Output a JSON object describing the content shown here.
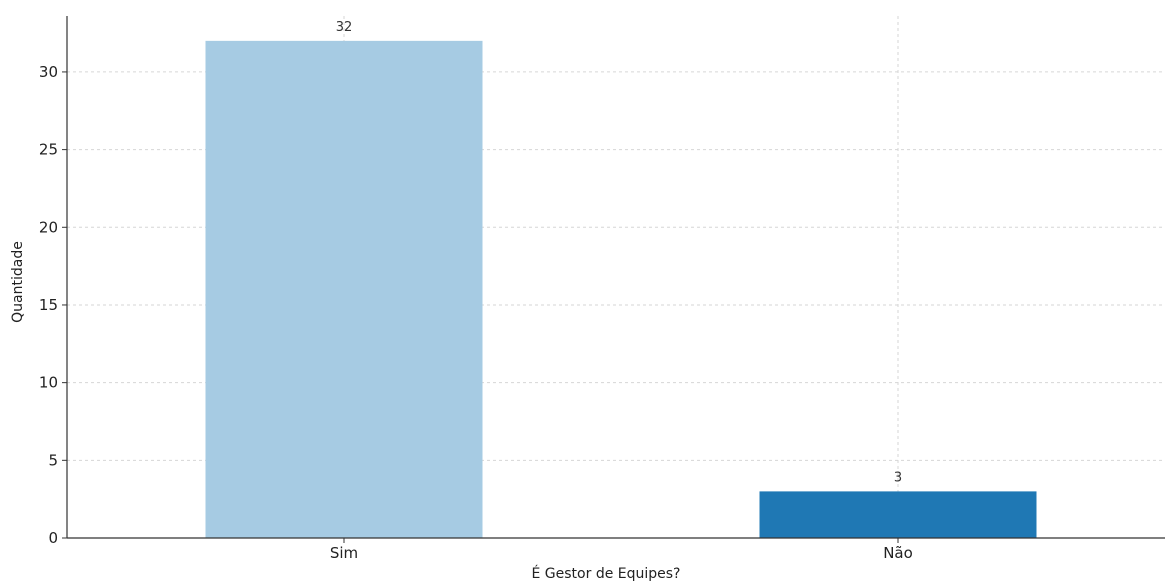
{
  "chart_data": {
    "type": "bar",
    "title": "",
    "xlabel": "É Gestor de Equipes?",
    "ylabel": "Quantidade",
    "categories": [
      "Sim",
      "Não"
    ],
    "values": [
      32,
      3
    ],
    "data_labels": [
      "32",
      "3"
    ],
    "colors": [
      "#a6cbe3",
      "#1f78b4"
    ],
    "ylim": [
      0,
      33.6
    ],
    "yticks": [
      0,
      5,
      10,
      15,
      20,
      25,
      30
    ],
    "grid": true,
    "legend": "none"
  }
}
